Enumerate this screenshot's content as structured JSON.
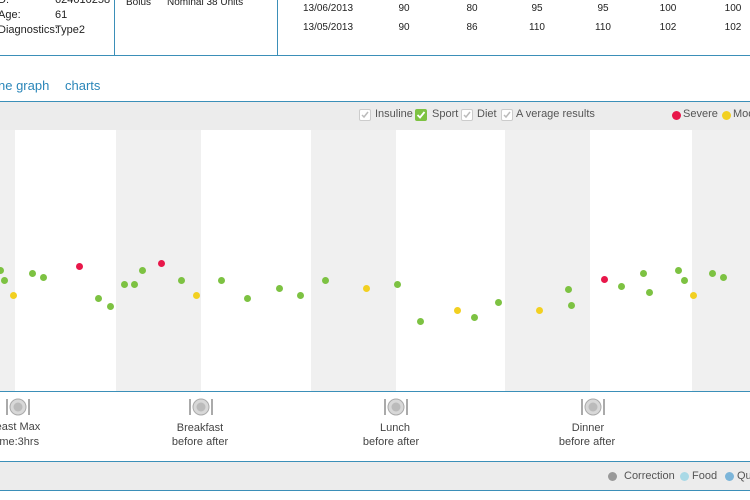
{
  "patient": {
    "id_label": "D:",
    "id_value": "624010258",
    "age_label": "Age:",
    "age_value": "61",
    "diag_label": "Diagnostics:",
    "diag_value": "Type2"
  },
  "insulin": {
    "label": "Bolus",
    "value": "Nominal 38 Units"
  },
  "table": {
    "rows": [
      [
        "13/06/2013",
        "90",
        "80",
        "95",
        "95",
        "100",
        "100"
      ],
      [
        "13/05/2013",
        "90",
        "86",
        "110",
        "110",
        "102",
        "102"
      ]
    ]
  },
  "nav": {
    "line_graph": "ne graph",
    "charts": "charts"
  },
  "filters": [
    {
      "label": "Insuline",
      "checked": false
    },
    {
      "label": "Sport",
      "checked": true
    },
    {
      "label": "Diet",
      "checked": false
    },
    {
      "label": "A verage results",
      "checked": false
    }
  ],
  "severity_legend": [
    {
      "label": "Severe",
      "color": "#e8174a"
    },
    {
      "label": "Mod",
      "color": "#f2d021"
    }
  ],
  "colors": {
    "green": "#7dc242",
    "red": "#e8174a",
    "yellow": "#f2d021",
    "accent": "#3b8fb8"
  },
  "chart_data": {
    "type": "scatter",
    "series": [
      {
        "color": "green",
        "values": [
          [
            0,
            270
          ],
          [
            4,
            280
          ],
          [
            32,
            273
          ],
          [
            43,
            277
          ],
          [
            98,
            298
          ],
          [
            110,
            306
          ],
          [
            124,
            284
          ],
          [
            134,
            284
          ],
          [
            142,
            270
          ],
          [
            181,
            280
          ],
          [
            221,
            280
          ],
          [
            247,
            298
          ],
          [
            279,
            288
          ],
          [
            300,
            295
          ],
          [
            325,
            280
          ],
          [
            397,
            284
          ],
          [
            420,
            321
          ],
          [
            474,
            317
          ],
          [
            498,
            302
          ],
          [
            568,
            289
          ],
          [
            571,
            305
          ],
          [
            621,
            286
          ],
          [
            643,
            273
          ],
          [
            649,
            292
          ],
          [
            678,
            270
          ],
          [
            684,
            280
          ],
          [
            712,
            273
          ],
          [
            723,
            277
          ]
        ]
      },
      {
        "color": "red",
        "values": [
          [
            79,
            266
          ],
          [
            161,
            263
          ],
          [
            604,
            279
          ]
        ]
      },
      {
        "color": "yellow",
        "values": [
          [
            13,
            295
          ],
          [
            196,
            295
          ],
          [
            366,
            288
          ],
          [
            457,
            310
          ],
          [
            539,
            310
          ],
          [
            693,
            295
          ]
        ]
      }
    ]
  },
  "meals": [
    {
      "title": "east Max",
      "sub": "ime:3hrs"
    },
    {
      "title": "Breakfast",
      "sub": "before  after"
    },
    {
      "title": "Lunch",
      "sub": "before  after"
    },
    {
      "title": "Dinner",
      "sub": "before  after"
    }
  ],
  "bottom_legend": [
    {
      "label": "Correction",
      "color": "#999999"
    },
    {
      "label": "Food",
      "color": "#a9d9e6"
    },
    {
      "label": "Qu",
      "color": "#7cb5d9"
    }
  ]
}
